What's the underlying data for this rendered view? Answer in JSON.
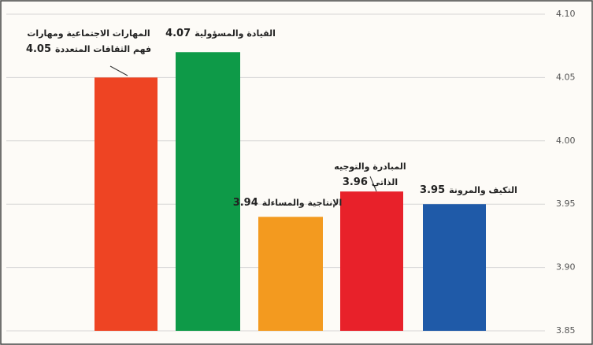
{
  "chart_data": {
    "type": "bar",
    "categories": [
      "المهارات الاجتماعية ومهارات فهم الثقافات المتعددة",
      "القيادة والمسؤولية",
      "الإنتاجية والمساءلة",
      "المبادرة والتوجيه الذاتي",
      "التكيف والمرونة"
    ],
    "values": [
      4.05,
      4.07,
      3.94,
      3.96,
      3.95
    ],
    "colors": [
      "#ee4423",
      "#0e9a48",
      "#f39a1f",
      "#e8212a",
      "#1f5aa8"
    ],
    "ylim": [
      3.85,
      4.1
    ],
    "yticks": [
      3.85,
      {
        "value": 3.9,
        "label": "3.90"
      },
      3.95,
      {
        "value": 4,
        "label": "4.00"
      },
      4.05,
      {
        "value": 4.1,
        "label": "4.10"
      }
    ],
    "grid": true
  }
}
